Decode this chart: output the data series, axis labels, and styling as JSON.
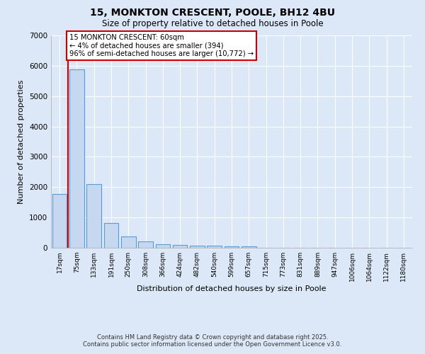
{
  "title": "15, MONKTON CRESCENT, POOLE, BH12 4BU",
  "subtitle": "Size of property relative to detached houses in Poole",
  "xlabel": "Distribution of detached houses by size in Poole",
  "ylabel": "Number of detached properties",
  "categories": [
    "17sqm",
    "75sqm",
    "133sqm",
    "191sqm",
    "250sqm",
    "308sqm",
    "366sqm",
    "424sqm",
    "482sqm",
    "540sqm",
    "599sqm",
    "657sqm",
    "715sqm",
    "773sqm",
    "831sqm",
    "889sqm",
    "947sqm",
    "1006sqm",
    "1064sqm",
    "1122sqm",
    "1180sqm"
  ],
  "values": [
    1780,
    5870,
    2090,
    820,
    370,
    220,
    110,
    95,
    75,
    60,
    50,
    40,
    0,
    0,
    0,
    0,
    0,
    0,
    0,
    0,
    0
  ],
  "bar_color": "#c5d8f0",
  "bar_edgecolor": "#5b9bd5",
  "bar_alpha": 1.0,
  "vline_color": "#cc0000",
  "annotation_text": "15 MONKTON CRESCENT: 60sqm\n← 4% of detached houses are smaller (394)\n96% of semi-detached houses are larger (10,772) →",
  "annotation_box_facecolor": "#ffffff",
  "annotation_box_edgecolor": "#cc0000",
  "ylim": [
    0,
    7000
  ],
  "yticks": [
    0,
    1000,
    2000,
    3000,
    4000,
    5000,
    6000,
    7000
  ],
  "background_color": "#dce8f7",
  "grid_color": "#ffffff",
  "footer1": "Contains HM Land Registry data © Crown copyright and database right 2025.",
  "footer2": "Contains public sector information licensed under the Open Government Licence v3.0."
}
